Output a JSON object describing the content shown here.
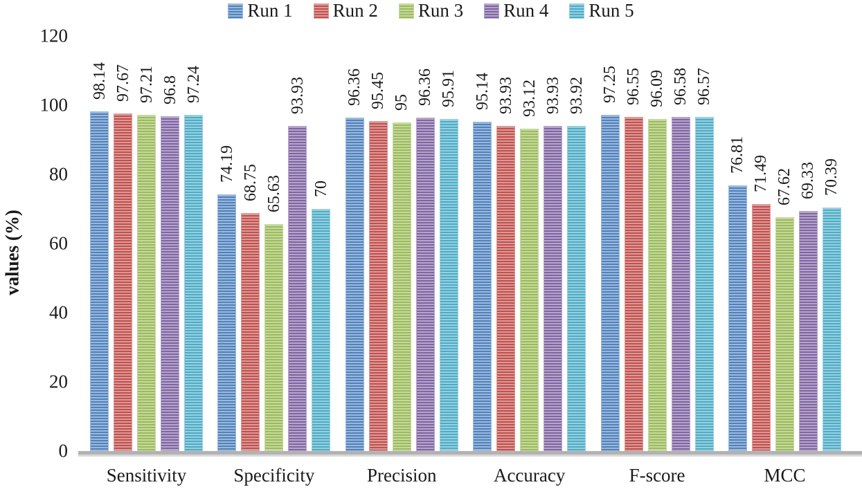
{
  "chart_data": {
    "type": "bar",
    "ylabel": "values (%)",
    "ylim": [
      0,
      120
    ],
    "yticks": [
      0,
      20,
      40,
      60,
      80,
      100,
      120
    ],
    "grid": false,
    "legend_position": "top",
    "categories": [
      "Sensitivity",
      "Specificity",
      "Precision",
      "Accuracy",
      "F-score",
      "MCC"
    ],
    "series": [
      {
        "name": "Run 1",
        "color": "#4f81bd",
        "stripe_color": "#9cb9da",
        "values": [
          98.14,
          74.19,
          96.36,
          95.14,
          97.25,
          76.81
        ],
        "labels": [
          "98.14",
          "74.19",
          "96.36",
          "95.14",
          "97.25",
          "76.81"
        ]
      },
      {
        "name": "Run 2",
        "color": "#c0504d",
        "stripe_color": "#dc9a98",
        "values": [
          97.67,
          68.75,
          95.45,
          93.93,
          96.55,
          71.49
        ],
        "labels": [
          "97.67",
          "68.75",
          "95.45",
          "93.93",
          "96.55",
          "71.49"
        ]
      },
      {
        "name": "Run 3",
        "color": "#9bbb59",
        "stripe_color": "#c6d8a0",
        "values": [
          97.21,
          65.63,
          95.0,
          93.12,
          96.09,
          67.62
        ],
        "labels": [
          "97.21",
          "65.63",
          "95",
          "93.12",
          "96.09",
          "67.62"
        ]
      },
      {
        "name": "Run 4",
        "color": "#8064a2",
        "stripe_color": "#b5a6ca",
        "values": [
          96.8,
          93.93,
          96.36,
          93.93,
          96.58,
          69.33
        ],
        "labels": [
          "96.8",
          "93.93",
          "96.36",
          "93.93",
          "96.58",
          "69.33"
        ]
      },
      {
        "name": "Run 5",
        "color": "#4bacc6",
        "stripe_color": "#99cfdf",
        "values": [
          97.24,
          70.0,
          95.91,
          93.92,
          96.57,
          70.39
        ],
        "labels": [
          "97.24",
          "70",
          "95.91",
          "93.92",
          "96.57",
          "70.39"
        ]
      }
    ]
  }
}
